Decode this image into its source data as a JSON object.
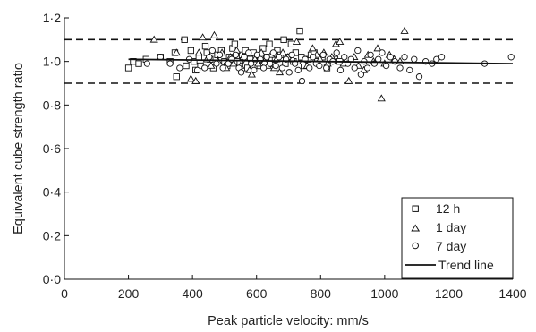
{
  "chart_data": {
    "type": "scatter",
    "title": "",
    "xlabel": "Peak particle velocity: mm/s",
    "ylabel": "Equivalent cube strength ratio",
    "xlim": [
      0,
      1400
    ],
    "ylim": [
      0,
      1.2
    ],
    "x_ticks": [
      0,
      200,
      400,
      600,
      800,
      1000,
      1200,
      1400
    ],
    "x_tick_labels": [
      "0",
      "200",
      "400",
      "600",
      "800",
      "1000",
      "1200",
      "1400"
    ],
    "y_ticks": [
      0,
      0.2,
      0.4,
      0.6,
      0.8,
      1.0,
      1.2
    ],
    "y_tick_labels": [
      "0·0",
      "0·2",
      "0·4",
      "0·6",
      "0·8",
      "1·0",
      "1·2"
    ],
    "grid": false,
    "legend_position": "bottom-right",
    "reference_lines": [
      {
        "y": 1.1,
        "style": "dashed"
      },
      {
        "y": 0.9,
        "style": "dashed"
      }
    ],
    "series": [
      {
        "name": "12 h",
        "marker": "square",
        "points": [
          [
            200,
            0.97
          ],
          [
            215,
            1.0
          ],
          [
            232,
            0.99
          ],
          [
            255,
            1.01
          ],
          [
            300,
            1.02
          ],
          [
            330,
            1.0
          ],
          [
            345,
            1.04
          ],
          [
            350,
            0.93
          ],
          [
            375,
            1.1
          ],
          [
            380,
            0.98
          ],
          [
            395,
            1.05
          ],
          [
            405,
            1.0
          ],
          [
            410,
            0.96
          ],
          [
            420,
            1.02
          ],
          [
            425,
            0.98
          ],
          [
            440,
            1.07
          ],
          [
            445,
            1.04
          ],
          [
            455,
            1.01
          ],
          [
            465,
            0.97
          ],
          [
            478,
            1.03
          ],
          [
            490,
            1.05
          ],
          [
            500,
            1.0
          ],
          [
            508,
            0.98
          ],
          [
            515,
            1.02
          ],
          [
            525,
            1.06
          ],
          [
            532,
            1.08
          ],
          [
            540,
            1.0
          ],
          [
            548,
            0.99
          ],
          [
            555,
            1.03
          ],
          [
            565,
            1.05
          ],
          [
            572,
            0.97
          ],
          [
            580,
            1.01
          ],
          [
            590,
            1.04
          ],
          [
            600,
            1.0
          ],
          [
            610,
            0.98
          ],
          [
            620,
            1.06
          ],
          [
            630,
            1.02
          ],
          [
            640,
            1.08
          ],
          [
            648,
            0.99
          ],
          [
            658,
            1.01
          ],
          [
            665,
            1.05
          ],
          [
            675,
            1.03
          ],
          [
            685,
            1.1
          ],
          [
            690,
            0.99
          ],
          [
            700,
            1.02
          ],
          [
            708,
            1.08
          ],
          [
            715,
            1.0
          ],
          [
            722,
            1.04
          ],
          [
            735,
            1.14
          ],
          [
            740,
            1.02
          ],
          [
            748,
            0.98
          ],
          [
            760,
            1.01
          ],
          [
            770,
            1.03
          ],
          [
            780,
            1.04
          ],
          [
            790,
            1.0
          ],
          [
            805,
            1.02
          ],
          [
            820,
            0.97
          ],
          [
            845,
            1.01
          ],
          [
            860,
            1.0
          ]
        ]
      },
      {
        "name": "1 day",
        "marker": "triangle",
        "points": [
          [
            280,
            1.1
          ],
          [
            350,
            1.04
          ],
          [
            395,
            0.92
          ],
          [
            410,
            0.91
          ],
          [
            420,
            1.04
          ],
          [
            432,
            1.11
          ],
          [
            445,
            1.01
          ],
          [
            458,
            0.98
          ],
          [
            468,
            1.12
          ],
          [
            480,
            1.0
          ],
          [
            492,
            1.04
          ],
          [
            505,
            0.97
          ],
          [
            518,
            1.02
          ],
          [
            528,
            0.99
          ],
          [
            538,
            1.05
          ],
          [
            550,
            0.98
          ],
          [
            558,
            1.02
          ],
          [
            568,
            1.0
          ],
          [
            578,
            0.96
          ],
          [
            585,
            0.94
          ],
          [
            595,
            1.01
          ],
          [
            605,
            0.99
          ],
          [
            615,
            1.04
          ],
          [
            625,
            1.0
          ],
          [
            635,
            0.98
          ],
          [
            645,
            1.03
          ],
          [
            655,
            0.97
          ],
          [
            662,
            1.01
          ],
          [
            672,
            0.95
          ],
          [
            682,
            1.04
          ],
          [
            698,
            1.02
          ],
          [
            712,
            1.01
          ],
          [
            725,
            1.09
          ],
          [
            745,
            1.0
          ],
          [
            758,
            0.98
          ],
          [
            775,
            1.06
          ],
          [
            788,
            1.03
          ],
          [
            798,
            1.01
          ],
          [
            810,
            1.04
          ],
          [
            822,
            0.99
          ],
          [
            835,
            1.02
          ],
          [
            848,
            1.08
          ],
          [
            860,
            1.09
          ],
          [
            872,
            0.99
          ],
          [
            888,
            0.91
          ],
          [
            905,
            1.02
          ],
          [
            918,
            0.98
          ],
          [
            935,
            0.96
          ],
          [
            948,
            1.03
          ],
          [
            965,
            1.0
          ],
          [
            978,
            1.06
          ],
          [
            990,
            0.83
          ],
          [
            1000,
            0.99
          ],
          [
            1015,
            1.03
          ],
          [
            1030,
            1.01
          ],
          [
            1048,
            1.0
          ],
          [
            1062,
            1.14
          ]
        ]
      },
      {
        "name": "7 day",
        "marker": "circle",
        "points": [
          [
            258,
            0.99
          ],
          [
            300,
            1.02
          ],
          [
            330,
            0.99
          ],
          [
            360,
            0.97
          ],
          [
            390,
            1.01
          ],
          [
            415,
            0.96
          ],
          [
            438,
            0.97
          ],
          [
            452,
            1.02
          ],
          [
            462,
            1.05
          ],
          [
            475,
            0.99
          ],
          [
            485,
            1.03
          ],
          [
            495,
            0.97
          ],
          [
            512,
            0.99
          ],
          [
            522,
            1.01
          ],
          [
            535,
            1.03
          ],
          [
            545,
            0.97
          ],
          [
            552,
            0.95
          ],
          [
            562,
            1.02
          ],
          [
            575,
            1.04
          ],
          [
            583,
            0.99
          ],
          [
            592,
            0.96
          ],
          [
            602,
            1.03
          ],
          [
            612,
            1.01
          ],
          [
            622,
            0.97
          ],
          [
            632,
            1.02
          ],
          [
            642,
            0.99
          ],
          [
            652,
            1.04
          ],
          [
            660,
            0.98
          ],
          [
            670,
            1.02
          ],
          [
            680,
            0.97
          ],
          [
            692,
            1.01
          ],
          [
            702,
            0.95
          ],
          [
            710,
            1.03
          ],
          [
            720,
            0.99
          ],
          [
            730,
            0.96
          ],
          [
            742,
            0.91
          ],
          [
            752,
            1.01
          ],
          [
            765,
            0.97
          ],
          [
            776,
            1.02
          ],
          [
            786,
            0.99
          ],
          [
            796,
            0.98
          ],
          [
            808,
            1.03
          ],
          [
            818,
            0.97
          ],
          [
            828,
            1.01
          ],
          [
            838,
            1.0
          ],
          [
            850,
            1.04
          ],
          [
            862,
            0.96
          ],
          [
            874,
            1.02
          ],
          [
            885,
            0.99
          ],
          [
            895,
            1.01
          ],
          [
            906,
            0.97
          ],
          [
            916,
            1.05
          ],
          [
            926,
            0.94
          ],
          [
            936,
            1.0
          ],
          [
            946,
            0.97
          ],
          [
            956,
            1.03
          ],
          [
            968,
            0.99
          ],
          [
            980,
            1.01
          ],
          [
            992,
            1.04
          ],
          [
            1005,
            0.98
          ],
          [
            1018,
            1.02
          ],
          [
            1032,
            1.0
          ],
          [
            1048,
            0.97
          ],
          [
            1062,
            1.02
          ],
          [
            1078,
            0.96
          ],
          [
            1092,
            1.01
          ],
          [
            1108,
            0.93
          ],
          [
            1128,
            1.0
          ],
          [
            1148,
            0.99
          ],
          [
            1162,
            1.01
          ],
          [
            1178,
            1.02
          ],
          [
            1312,
            0.99
          ],
          [
            1395,
            1.02
          ]
        ]
      }
    ],
    "trend_line": {
      "name": "Trend line",
      "points": [
        [
          200,
          1.01
        ],
        [
          1400,
          0.99
        ]
      ]
    }
  },
  "legend": {
    "items": [
      {
        "label": "12 h",
        "marker": "square"
      },
      {
        "label": "1 day",
        "marker": "triangle"
      },
      {
        "label": "7 day",
        "marker": "circle"
      },
      {
        "label": "Trend line",
        "marker": "line"
      }
    ]
  }
}
